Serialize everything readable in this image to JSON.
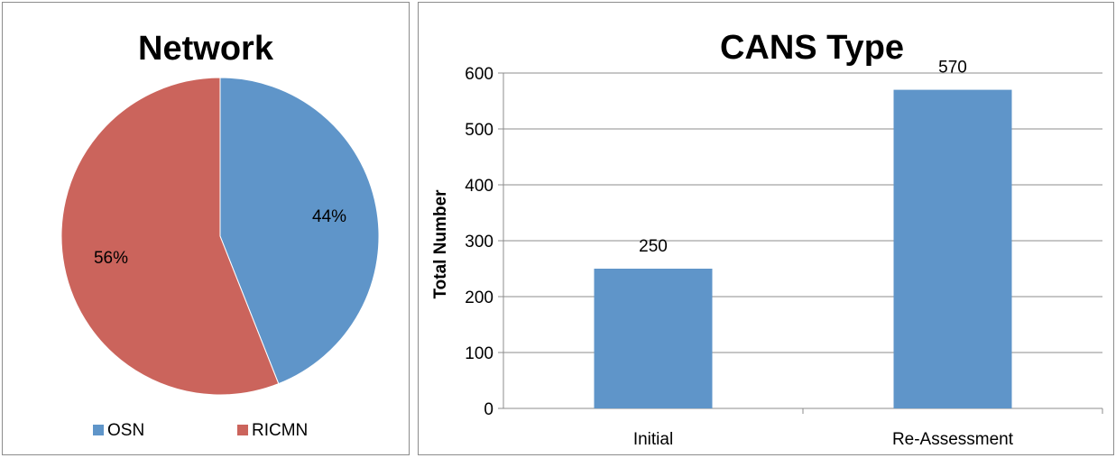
{
  "chart_data": [
    {
      "type": "pie",
      "title": "Network",
      "slices": [
        {
          "label": "OSN",
          "value": 44,
          "display": "44%",
          "color": "#5f95c9"
        },
        {
          "label": "RICMN",
          "value": 56,
          "display": "56%",
          "color": "#cb645c"
        }
      ],
      "legend_position": "bottom"
    },
    {
      "type": "bar",
      "title": "CANS Type",
      "categories": [
        "Initial",
        "Re-Assessment"
      ],
      "values": [
        250,
        570
      ],
      "data_labels": [
        "250",
        "570"
      ],
      "ylabel": "Total Number",
      "xlabel": "",
      "ylim": [
        0,
        600
      ],
      "yticks": [
        0,
        100,
        200,
        300,
        400,
        500,
        600
      ],
      "grid": true,
      "bar_color": "#5f95c9"
    }
  ]
}
